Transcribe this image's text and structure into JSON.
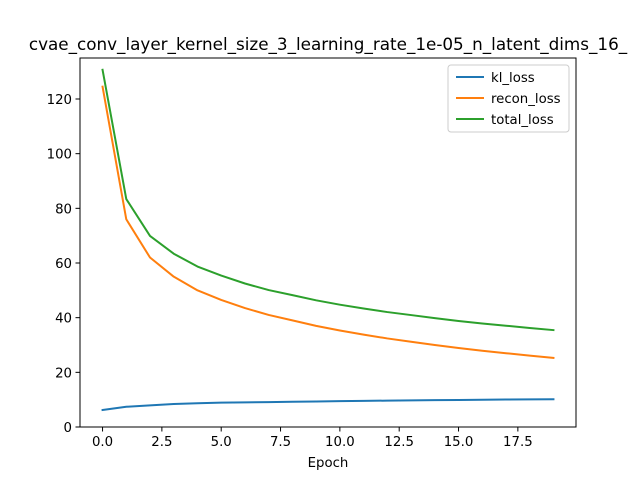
{
  "chart_data": {
    "type": "line",
    "title": "cvae_conv_layer_kernel_size_3_learning_rate_1e-05_n_latent_dims_16_",
    "xlabel": "Epoch",
    "ylabel": "",
    "xlim": [
      -0.95,
      19.95
    ],
    "ylim": [
      0,
      135
    ],
    "x_ticks": [
      0.0,
      2.5,
      5.0,
      7.5,
      10.0,
      12.5,
      15.0,
      17.5
    ],
    "y_ticks": [
      0,
      20,
      40,
      60,
      80,
      100,
      120
    ],
    "legend_position": "top-right",
    "grid": false,
    "x": [
      0,
      1,
      2,
      3,
      4,
      5,
      6,
      7,
      8,
      9,
      10,
      11,
      12,
      13,
      14,
      15,
      16,
      17,
      18,
      19
    ],
    "series": [
      {
        "name": "kl_loss",
        "color": "#1f77b4",
        "values": [
          6.2,
          7.4,
          7.9,
          8.4,
          8.7,
          8.9,
          9.0,
          9.1,
          9.25,
          9.35,
          9.45,
          9.55,
          9.65,
          9.75,
          9.85,
          9.9,
          9.95,
          10.05,
          10.1,
          10.15
        ]
      },
      {
        "name": "recon_loss",
        "color": "#ff7f0e",
        "values": [
          124.5,
          76.0,
          62.0,
          55.0,
          50.0,
          46.5,
          43.5,
          41.0,
          39.0,
          37.0,
          35.3,
          33.8,
          32.4,
          31.2,
          30.0,
          28.9,
          27.9,
          27.0,
          26.1,
          25.3
        ]
      },
      {
        "name": "total_loss",
        "color": "#2ca02c",
        "values": [
          130.7,
          83.4,
          69.9,
          63.4,
          58.7,
          55.4,
          52.5,
          50.1,
          48.25,
          46.35,
          44.75,
          43.35,
          42.05,
          40.95,
          39.85,
          38.8,
          37.85,
          37.05,
          36.2,
          35.45
        ]
      }
    ]
  }
}
